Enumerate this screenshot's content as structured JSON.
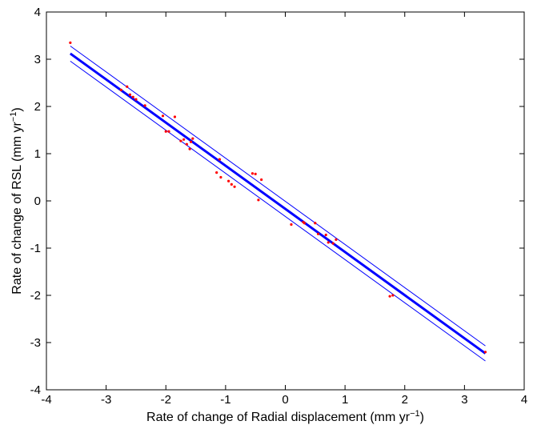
{
  "chart_data": {
    "type": "scatter",
    "xlabel": "Rate of change of Radial displacement (mm yr",
    "xlabel_sup": "−1",
    "xlabel_end": ")",
    "ylabel": "Rate of change of RSL (mm yr",
    "ylabel_sup": "−1",
    "ylabel_end": ")",
    "xlim": [
      -4,
      4
    ],
    "ylim": [
      -4,
      4
    ],
    "xticks": [
      -4,
      -3,
      -2,
      -1,
      0,
      1,
      2,
      3,
      4
    ],
    "yticks": [
      -4,
      -3,
      -2,
      -1,
      0,
      1,
      2,
      3,
      4
    ],
    "grid": false,
    "colors": {
      "fit": "#0000ff",
      "points": "#ff0000",
      "axes": "#000000"
    },
    "fit_line": {
      "x": [
        -3.6,
        3.35
      ],
      "y": [
        3.12,
        -3.23
      ]
    },
    "confidence_upper": {
      "x": [
        -3.6,
        3.35
      ],
      "y": [
        3.28,
        -3.07
      ]
    },
    "confidence_lower": {
      "x": [
        -3.6,
        3.35
      ],
      "y": [
        2.96,
        -3.39
      ]
    },
    "points": [
      [
        -3.6,
        3.35
      ],
      [
        -2.75,
        2.35
      ],
      [
        -2.65,
        2.42
      ],
      [
        -2.6,
        2.25
      ],
      [
        -2.55,
        2.2
      ],
      [
        -2.5,
        2.15
      ],
      [
        -2.35,
        2.02
      ],
      [
        -2.05,
        1.8
      ],
      [
        -2.0,
        1.47
      ],
      [
        -1.95,
        1.47
      ],
      [
        -1.85,
        1.78
      ],
      [
        -1.75,
        1.27
      ],
      [
        -1.7,
        1.3
      ],
      [
        -1.65,
        1.2
      ],
      [
        -1.6,
        1.1
      ],
      [
        -1.58,
        1.25
      ],
      [
        -1.55,
        1.32
      ],
      [
        -1.15,
        0.6
      ],
      [
        -1.1,
        0.88
      ],
      [
        -1.08,
        0.5
      ],
      [
        -0.95,
        0.42
      ],
      [
        -0.9,
        0.35
      ],
      [
        -0.85,
        0.3
      ],
      [
        -0.55,
        0.58
      ],
      [
        -0.5,
        0.57
      ],
      [
        -0.45,
        0.02
      ],
      [
        -0.4,
        0.45
      ],
      [
        0.1,
        -0.5
      ],
      [
        0.3,
        -0.45
      ],
      [
        0.32,
        -0.47
      ],
      [
        0.5,
        -0.47
      ],
      [
        0.55,
        -0.7
      ],
      [
        0.68,
        -0.72
      ],
      [
        0.72,
        -0.88
      ],
      [
        0.8,
        -0.9
      ],
      [
        0.85,
        -0.82
      ],
      [
        1.75,
        -2.02
      ],
      [
        1.8,
        -2.0
      ],
      [
        3.35,
        -3.2
      ]
    ]
  }
}
